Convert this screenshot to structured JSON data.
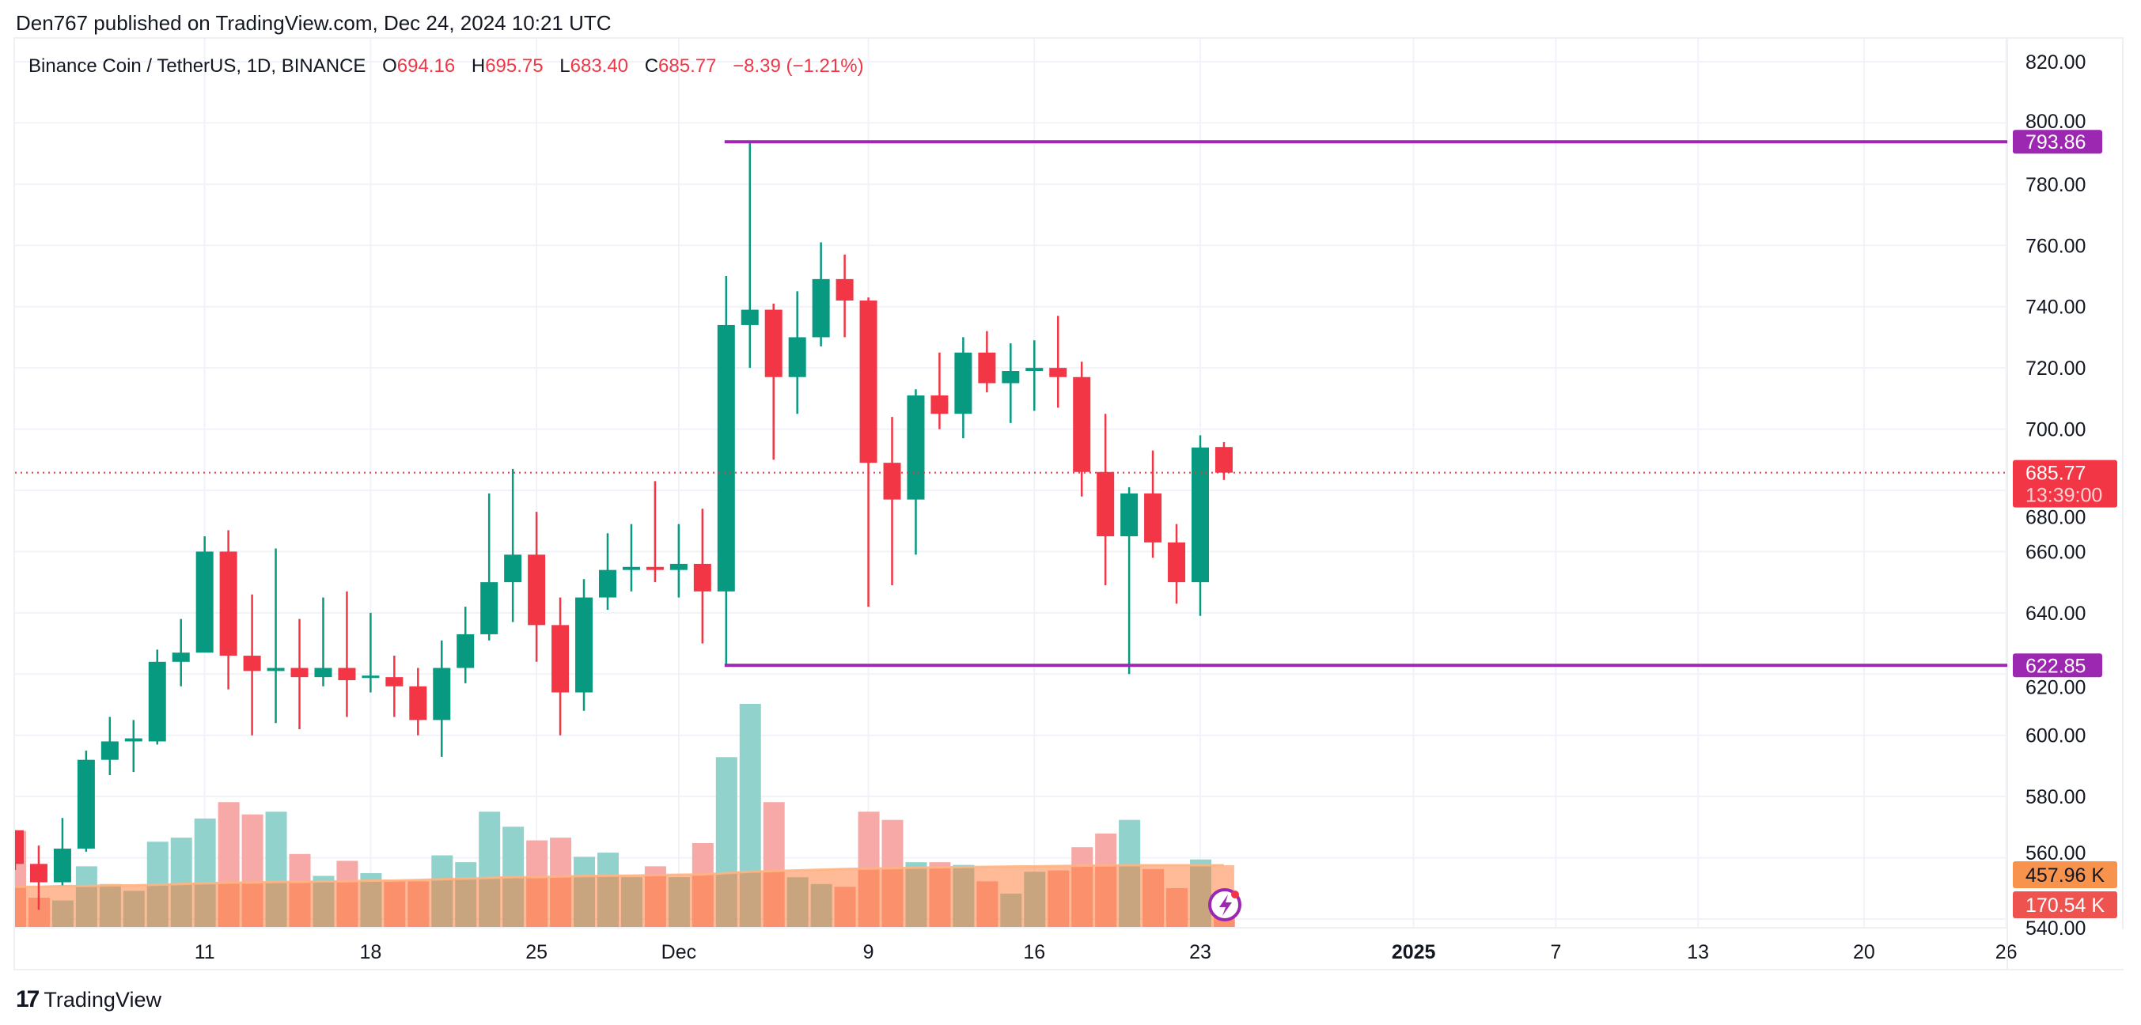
{
  "publisher": "Den767 published on TradingView.com, Dec 24, 2024 10:21 UTC",
  "legend": {
    "symbol": "Binance Coin / TetherUS, 1D, BINANCE",
    "o_label": "O",
    "o": "694.16",
    "h_label": "H",
    "h": "695.75",
    "l_label": "L",
    "l": "683.40",
    "c_label": "C",
    "c": "685.77",
    "change": "−8.39 (−1.21%)"
  },
  "branding": {
    "logo_text": "TradingView",
    "logo_mark": "17"
  },
  "colors": {
    "up": "#089981",
    "down": "#f23645",
    "level": "#9c27b0",
    "vol_ma": "#f7934c",
    "vol_label": "#ef5350"
  },
  "chart_data": {
    "type": "candlestick",
    "title": "Binance Coin / TetherUS, 1D, BINANCE",
    "first_date": "2024-11-03",
    "ylim": [
      540,
      820
    ],
    "y_ticks": [
      "820.00",
      "800.00",
      "780.00",
      "760.00",
      "740.00",
      "720.00",
      "700.00",
      "680.00",
      "660.00",
      "640.00",
      "620.00",
      "600.00",
      "580.00",
      "560.00",
      "540.00"
    ],
    "x_ticks": [
      {
        "label": "11",
        "day": 8
      },
      {
        "label": "18",
        "day": 15
      },
      {
        "label": "25",
        "day": 22
      },
      {
        "label": "Dec",
        "day": 28
      },
      {
        "label": "9",
        "day": 36
      },
      {
        "label": "16",
        "day": 43
      },
      {
        "label": "23",
        "day": 50
      },
      {
        "label": "2025",
        "day": 59,
        "bold": true
      },
      {
        "label": "7",
        "day": 65
      },
      {
        "label": "13",
        "day": 71
      },
      {
        "label": "20",
        "day": 78
      },
      {
        "label": "26",
        "day": 84
      }
    ],
    "ohlc": [
      [
        569,
        569,
        556,
        558
      ],
      [
        558,
        564,
        543,
        552
      ],
      [
        552,
        573,
        551,
        563
      ],
      [
        563,
        595,
        562,
        592
      ],
      [
        592,
        606,
        587,
        598
      ],
      [
        598,
        605,
        588,
        599
      ],
      [
        598,
        628,
        597,
        624
      ],
      [
        624,
        638,
        616,
        627
      ],
      [
        627,
        665,
        628,
        660
      ],
      [
        660,
        667,
        615,
        626
      ],
      [
        626,
        646,
        600,
        621
      ],
      [
        621,
        661,
        604,
        622
      ],
      [
        622,
        638,
        602,
        619
      ],
      [
        619,
        645,
        616,
        622
      ],
      [
        622,
        647,
        606,
        618
      ],
      [
        619,
        640,
        614,
        619.5
      ],
      [
        619,
        626,
        606,
        616
      ],
      [
        616,
        622,
        600,
        605
      ],
      [
        605,
        631,
        593,
        622
      ],
      [
        622,
        642,
        617,
        633
      ],
      [
        633,
        679,
        631,
        650
      ],
      [
        650,
        687,
        637,
        659
      ],
      [
        659,
        673,
        624,
        636
      ],
      [
        636,
        645,
        600,
        614
      ],
      [
        614,
        651,
        608,
        645
      ],
      [
        645,
        666,
        641,
        654
      ],
      [
        654,
        669,
        647,
        655
      ],
      [
        655,
        683,
        650,
        654
      ],
      [
        654,
        669,
        645,
        656
      ],
      [
        656,
        674,
        630,
        647
      ],
      [
        647,
        750,
        622.85,
        734
      ],
      [
        734,
        793.86,
        720,
        739
      ],
      [
        739,
        741,
        690,
        717
      ],
      [
        717,
        745,
        705,
        730
      ],
      [
        730,
        761,
        727,
        749
      ],
      [
        749,
        757,
        730,
        742
      ],
      [
        742,
        743,
        642,
        689
      ],
      [
        689,
        704,
        649,
        677
      ],
      [
        677,
        713,
        659,
        711
      ],
      [
        711,
        725,
        700,
        705
      ],
      [
        705,
        730,
        697,
        725
      ],
      [
        725,
        732,
        712,
        715
      ],
      [
        715,
        728,
        702,
        719
      ],
      [
        719,
        729,
        706,
        720
      ],
      [
        720,
        737,
        707,
        717
      ],
      [
        717,
        722,
        678,
        686
      ],
      [
        686,
        705,
        649,
        665
      ],
      [
        665,
        681,
        620,
        679
      ],
      [
        679,
        693,
        658,
        663
      ],
      [
        663,
        669,
        643,
        650
      ],
      [
        650,
        698,
        639,
        694
      ],
      [
        694.16,
        695.75,
        683.4,
        685.77
      ]
    ],
    "volume_k": [
      710,
      220,
      200,
      450,
      320,
      270,
      630,
      660,
      800,
      920,
      830,
      850,
      540,
      380,
      490,
      400,
      350,
      340,
      530,
      480,
      850,
      740,
      640,
      660,
      520,
      550,
      370,
      450,
      370,
      620,
      1250,
      1640,
      920,
      370,
      320,
      300,
      850,
      790,
      480,
      480,
      460,
      340,
      250,
      410,
      420,
      590,
      690,
      790,
      430,
      290,
      500,
      170.54
    ],
    "volume_ma_k": [
      300,
      300,
      305,
      305,
      310,
      310,
      315,
      320,
      325,
      330,
      330,
      335,
      335,
      340,
      340,
      345,
      345,
      350,
      355,
      360,
      365,
      370,
      370,
      375,
      378,
      380,
      382,
      385,
      388,
      390,
      400,
      410,
      415,
      420,
      425,
      430,
      433,
      436,
      440,
      442,
      444,
      446,
      448,
      450,
      452,
      454,
      456,
      458,
      458,
      458,
      458,
      457.96
    ],
    "levels": [
      {
        "price": "793.86",
        "from_day": 30,
        "label": "793.86"
      },
      {
        "price": "622.85",
        "from_day": 30,
        "label": "622.85"
      }
    ],
    "last_price": {
      "label": "685.77",
      "countdown": "13:39:00",
      "value": 685.77
    },
    "volume_labels": {
      "ma": "457.96 K",
      "last": "170.54 K"
    },
    "legend_placement": "top-left",
    "grid": true
  }
}
